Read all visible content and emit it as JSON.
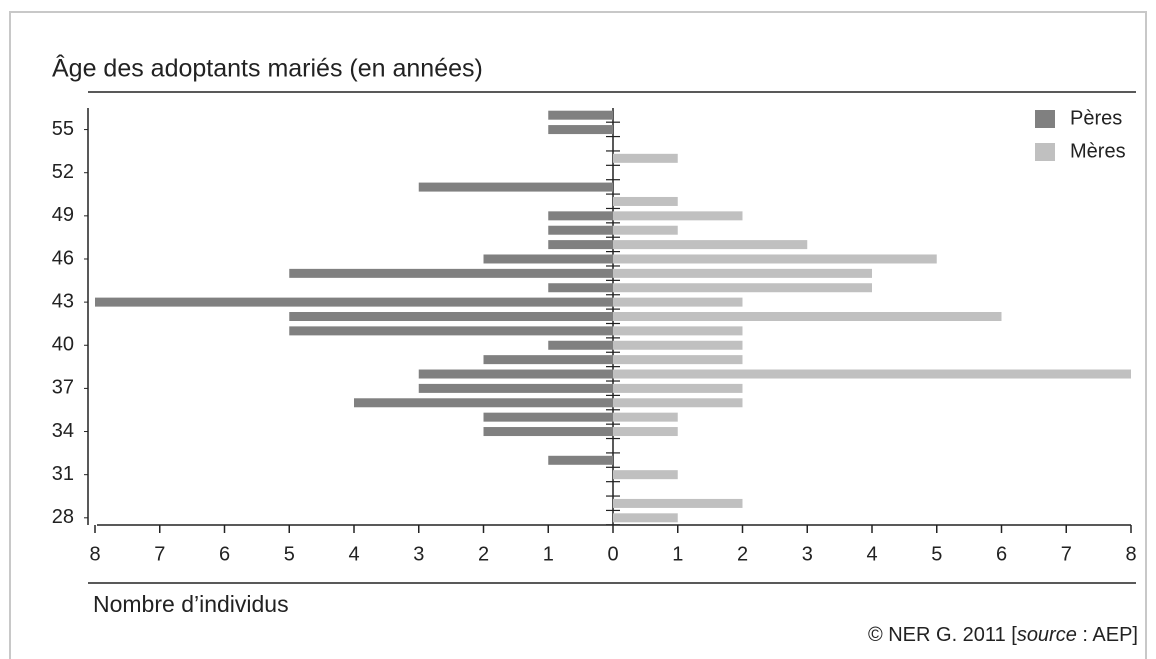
{
  "chart_data": {
    "type": "bar",
    "orientation": "horizontal",
    "title": "Âge des adoptants mariés (en années)",
    "xlabel": "Nombre d’individus",
    "source": [
      "© NER G. 2011 [",
      "source",
      " : AEP]"
    ],
    "y": [
      28,
      29,
      30,
      31,
      32,
      33,
      34,
      35,
      36,
      37,
      38,
      39,
      40,
      41,
      42,
      43,
      44,
      45,
      46,
      47,
      48,
      49,
      50,
      51,
      52,
      53,
      54,
      55,
      56
    ],
    "ylim": [
      27.5,
      56.5
    ],
    "yticks": [
      28,
      31,
      34,
      37,
      40,
      43,
      46,
      49,
      52,
      55
    ],
    "xlim": [
      0,
      8
    ],
    "xticks": [
      0,
      1,
      2,
      3,
      4,
      5,
      6,
      7,
      8
    ],
    "legend": "top-right",
    "series": [
      {
        "name": "Pères",
        "color": "#808080",
        "side": "left",
        "values": [
          0,
          0,
          0,
          0,
          1,
          0,
          2,
          2,
          4,
          3,
          3,
          2,
          1,
          5,
          5,
          8,
          1,
          5,
          2,
          1,
          1,
          1,
          0,
          3,
          0,
          0,
          0,
          1,
          1
        ]
      },
      {
        "name": "Mères",
        "color": "#c0c0c0",
        "side": "right",
        "values": [
          1,
          2,
          0,
          1,
          0,
          0,
          1,
          1,
          2,
          2,
          8,
          2,
          2,
          2,
          6,
          2,
          4,
          4,
          5,
          3,
          1,
          2,
          1,
          0,
          0,
          1,
          0,
          0,
          0
        ]
      }
    ]
  }
}
